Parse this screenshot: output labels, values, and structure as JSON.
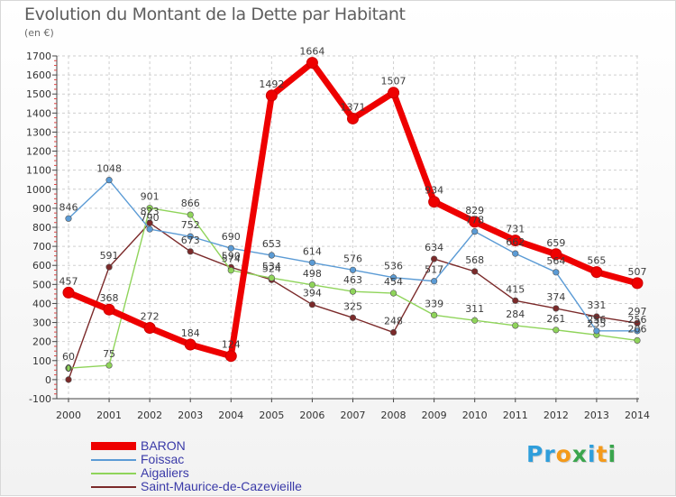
{
  "title": "Evolution du Montant de la Dette par Habitant",
  "subtitle": "(en €)",
  "logo": {
    "text": "Proxiti",
    "letters": [
      {
        "ch": "P",
        "color": "#2f9edb"
      },
      {
        "ch": "r",
        "color": "#2f9edb"
      },
      {
        "ch": "o",
        "color": "#f49a1a"
      },
      {
        "ch": "x",
        "color": "#3aa54d"
      },
      {
        "ch": "i",
        "color": "#2f9edb"
      },
      {
        "ch": "t",
        "color": "#f49a1a"
      },
      {
        "ch": "i",
        "color": "#3aa54d"
      }
    ]
  },
  "chart_data": {
    "type": "line",
    "title": "Evolution du Montant de la Dette par Habitant",
    "subtitle": "(en €)",
    "xlabel": "",
    "ylabel": "",
    "ylim": [
      -100,
      1700
    ],
    "yticks": [
      "-100",
      "0",
      "100",
      "200",
      "300",
      "400",
      "500",
      "600",
      "700",
      "800",
      "900",
      "1000",
      "1100",
      "1200",
      "1300",
      "1400",
      "1500",
      "1600",
      "1700"
    ],
    "grid": true,
    "legend_position": "bottom-left",
    "categories": [
      "2000",
      "2001",
      "2002",
      "2003",
      "2004",
      "2005",
      "2006",
      "2007",
      "2008",
      "2009",
      "2010",
      "2011",
      "2012",
      "2013",
      "2014"
    ],
    "series": [
      {
        "name": "BARON",
        "color": "#ee0000",
        "values": [
          457,
          368,
          272,
          184,
          124,
          1492,
          1664,
          1371,
          1507,
          934,
          829,
          731,
          659,
          565,
          507
        ],
        "labels": [
          "457",
          "368",
          "272",
          "184",
          "124",
          "1492",
          "1664",
          "1371",
          "1507",
          "934",
          "829",
          "731",
          "659",
          "565",
          "507"
        ]
      },
      {
        "name": "Foissac",
        "color": "#5b9bd5",
        "values": [
          846,
          1048,
          790,
          752,
          690,
          653,
          614,
          576,
          536,
          517,
          778,
          662,
          564,
          256,
          256
        ],
        "labels": [
          "846",
          "1048",
          "790",
          "752",
          "690",
          "653",
          "614",
          "576",
          "536",
          "517",
          "778",
          "662",
          "564",
          "256",
          "256"
        ]
      },
      {
        "name": "Aigaliers",
        "color": "#8fd45a",
        "values": [
          60,
          75,
          901,
          866,
          574,
          534,
          498,
          463,
          454,
          339,
          311,
          284,
          261,
          235,
          206
        ],
        "labels": [
          "60",
          "75",
          "901",
          "866",
          "574",
          "534",
          "498",
          "463",
          "454",
          "339",
          "311",
          "284",
          "261",
          "235",
          "206"
        ]
      },
      {
        "name": "Saint-Maurice-de-Cazevieille",
        "color": "#7b2a2a",
        "values": [
          0,
          591,
          823,
          673,
          590,
          524,
          394,
          325,
          248,
          634,
          568,
          415,
          374,
          331,
          297
        ],
        "labels": [
          "0",
          "591",
          "823",
          "673",
          "590",
          "524",
          "394",
          "325",
          "248",
          "634",
          "568",
          "415",
          "374",
          "331",
          "297"
        ]
      }
    ]
  }
}
